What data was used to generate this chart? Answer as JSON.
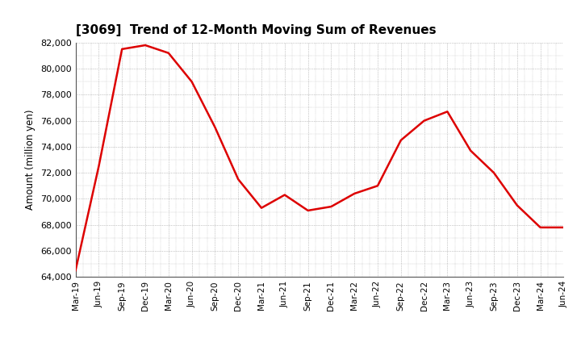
{
  "title": "[3069]  Trend of 12-Month Moving Sum of Revenues",
  "ylabel": "Amount (million yen)",
  "line_color": "#dd0000",
  "bg_color": "#ffffff",
  "grid_color": "#999999",
  "ylim": [
    64000,
    82000
  ],
  "yticks": [
    64000,
    66000,
    68000,
    70000,
    72000,
    74000,
    76000,
    78000,
    80000,
    82000
  ],
  "labels": [
    "Mar-19",
    "Jun-19",
    "Sep-19",
    "Dec-19",
    "Mar-20",
    "Jun-20",
    "Sep-20",
    "Dec-20",
    "Mar-21",
    "Jun-21",
    "Sep-21",
    "Dec-21",
    "Mar-22",
    "Jun-22",
    "Sep-22",
    "Dec-22",
    "Mar-23",
    "Jun-23",
    "Sep-23",
    "Dec-23",
    "Mar-24",
    "Jun-24"
  ],
  "values": [
    64500,
    72500,
    81500,
    81800,
    81200,
    79000,
    75500,
    71500,
    69300,
    70300,
    69100,
    69400,
    70400,
    71000,
    74500,
    76000,
    76700,
    73700,
    72000,
    69500,
    67800,
    67800
  ]
}
